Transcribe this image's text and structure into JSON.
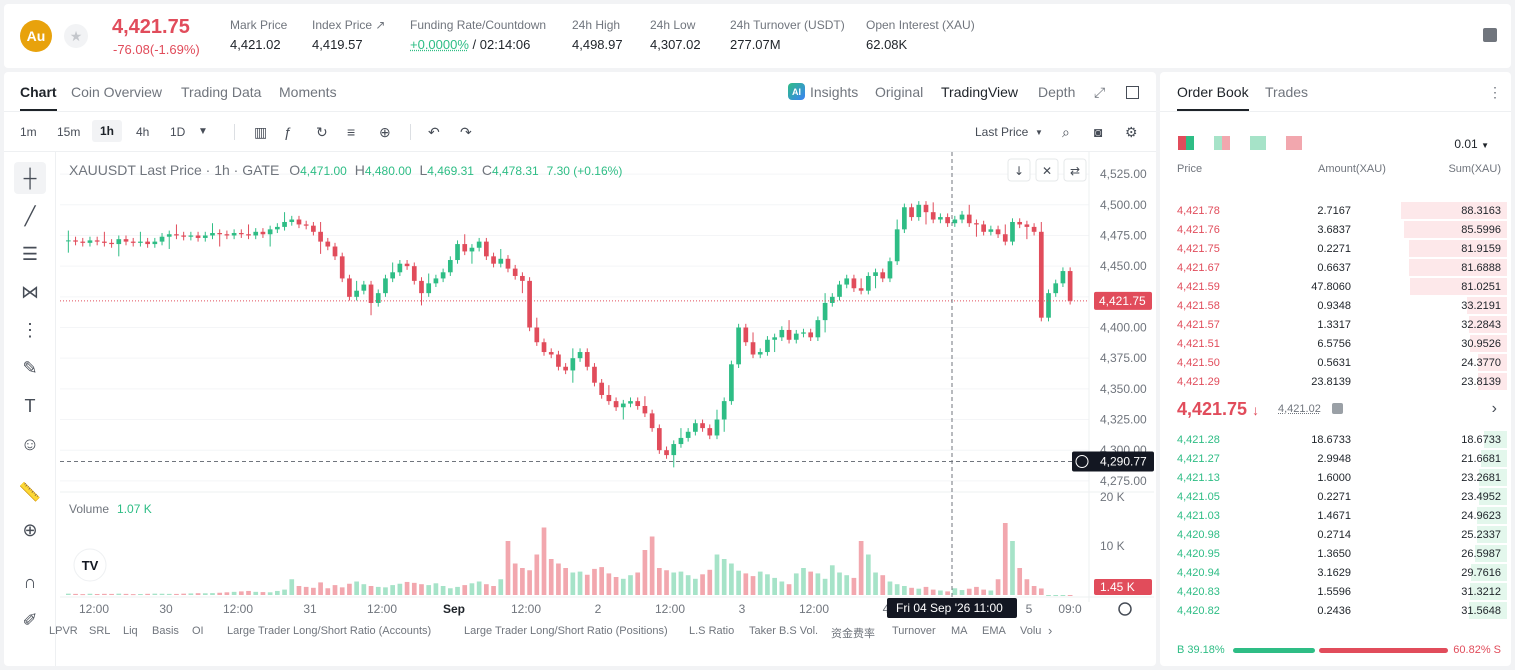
{
  "header": {
    "coin_logo": "Au",
    "last_price": "4,421.75",
    "change": "-76.08(-1.69%)",
    "stats": [
      {
        "label": "Mark Price",
        "value": "4,421.02"
      },
      {
        "label": "Index Price ↗",
        "value": "4,419.57"
      },
      {
        "label": "Funding Rate/Countdown",
        "value_green": "+0.0000%",
        "value": " / 02:14:06"
      },
      {
        "label": "24h High",
        "value": "4,498.97"
      },
      {
        "label": "24h Low",
        "value": "4,307.02"
      },
      {
        "label": "24h Turnover (USDT)",
        "value": "277.07M"
      },
      {
        "label": "Open Interest (XAU)",
        "value": "62.08K"
      }
    ]
  },
  "chart_tabs": {
    "left": [
      "Chart",
      "Coin Overview",
      "Trading Data",
      "Moments"
    ],
    "right": [
      "Insights",
      "Original",
      "TradingView",
      "Depth"
    ],
    "ai_badge": "AI"
  },
  "toolbar": {
    "timeframes": [
      "1m",
      "15m",
      "1h",
      "4h",
      "1D"
    ],
    "price_type": "Last Price"
  },
  "legend": {
    "symbol": "XAUUSDT Last Price · 1h · GATE",
    "o_label": "O",
    "o": "4,471.00",
    "h_label": "H",
    "h": "4,480.00",
    "l_label": "L",
    "l": "4,469.31",
    "c_label": "C",
    "c": "4,478.31",
    "chg": "7.30 (+0.16%)"
  },
  "volume_legend": {
    "label": "Volume",
    "value": "1.07 K"
  },
  "price_axis": [
    "4,525.00",
    "4,500.00",
    "4,475.00",
    "4,450.00",
    "4,425.00",
    "4,400.00",
    "4,375.00",
    "4,350.00",
    "4,325.00",
    "4,300.00",
    "4,275.00"
  ],
  "volume_axis": [
    "20 K",
    "10 K"
  ],
  "time_axis": [
    "12:00",
    "30",
    "12:00",
    "31",
    "12:00",
    "Sep",
    "12:00",
    "2",
    "12:00",
    "3",
    "12:00",
    "4",
    "5",
    "09:0"
  ],
  "price_tag": "4,421.75",
  "crosshair_tag": "4,290.77",
  "volume_tag": "1.45 K",
  "crosshair_time": "Fri 04 Sep '26   11:00",
  "indicators": [
    "LPVR",
    "SRL",
    "Liq",
    "Basis",
    "OI",
    "Large Trader Long/Short Ratio (Accounts)",
    "Large Trader Long/Short Ratio (Positions)",
    "L.S Ratio",
    "Taker B.S Vol.",
    "资金费率",
    "Turnover",
    "MA",
    "EMA",
    "Volu"
  ],
  "chart_data": {
    "type": "candlestick",
    "series_name": "XAUUSDT Last Price",
    "interval": "1h",
    "ylim": [
      4270,
      4530
    ],
    "closes": [
      4471,
      4470,
      4469,
      4471,
      4470,
      4469,
      4468,
      4472,
      4470,
      4469,
      4470,
      4468,
      4470,
      4474,
      4476,
      4475,
      4474,
      4475,
      4473,
      4475,
      4477,
      4476,
      4475,
      4477,
      4476,
      4475,
      4478,
      4476,
      4480,
      4482,
      4486,
      4488,
      4484,
      4483,
      4478,
      4470,
      4466,
      4458,
      4440,
      4425,
      4430,
      4435,
      4420,
      4428,
      4440,
      4445,
      4452,
      4450,
      4438,
      4428,
      4436,
      4440,
      4445,
      4455,
      4468,
      4462,
      4465,
      4470,
      4458,
      4452,
      4456,
      4448,
      4442,
      4438,
      4400,
      4388,
      4380,
      4378,
      4368,
      4365,
      4375,
      4380,
      4368,
      4355,
      4345,
      4340,
      4335,
      4338,
      4340,
      4336,
      4330,
      4318,
      4300,
      4296,
      4305,
      4310,
      4315,
      4322,
      4318,
      4312,
      4325,
      4340,
      4370,
      4400,
      4388,
      4378,
      4380,
      4390,
      4392,
      4398,
      4390,
      4395,
      4396,
      4392,
      4406,
      4420,
      4425,
      4435,
      4440,
      4432,
      4430,
      4442,
      4445,
      4440,
      4454,
      4480,
      4498,
      4490,
      4500,
      4494,
      4488,
      4490,
      4485,
      4488,
      4492,
      4485,
      4484,
      4478,
      4480,
      4476,
      4470,
      4486,
      4484,
      4482,
      4478,
      4408,
      4428,
      4436,
      4446,
      4421.75
    ],
    "volume_ylim": [
      0,
      20000
    ],
    "volumes": [
      300,
      250,
      200,
      280,
      220,
      260,
      240,
      300,
      250,
      200,
      220,
      260,
      300,
      280,
      250,
      240,
      300,
      350,
      400,
      380,
      420,
      500,
      600,
      700,
      800,
      900,
      700,
      650,
      600,
      900,
      1200,
      3500,
      2000,
      1800,
      1600,
      2800,
      1500,
      2200,
      1700,
      2500,
      3000,
      2400,
      2000,
      1800,
      1700,
      2200,
      2500,
      2900,
      2700,
      2400,
      2200,
      2600,
      2000,
      1500,
      1800,
      2200,
      2600,
      3000,
      2400,
      2000,
      3500,
      12000,
      7000,
      6000,
      5500,
      9000,
      15000,
      8000,
      7000,
      6000,
      5000,
      5200,
      4500,
      5800,
      6200,
      4800,
      4000,
      3600,
      4400,
      5000,
      10000,
      13000,
      6000,
      5500,
      5000,
      5200,
      4400,
      3600,
      4600,
      5600,
      9000,
      8000,
      7000,
      5400,
      4800,
      4200,
      5200,
      4600,
      3800,
      3000,
      2400,
      4800,
      6000,
      5200,
      4800,
      3600,
      6600,
      5000,
      4400,
      3800,
      12000,
      9000,
      5000,
      4400,
      3000,
      2400,
      2000,
      1600,
      1400,
      1800,
      1200,
      1000,
      800,
      1500,
      1100,
      1400,
      1800,
      1200,
      1000,
      3500,
      16000,
      12000,
      6000,
      3500,
      2000,
      1450
    ],
    "crosshair_price": 4290.77,
    "last_price": 4421.75
  },
  "order_book": {
    "tabs": [
      "Order Book",
      "Trades"
    ],
    "precision": "0.01",
    "columns": [
      "Price",
      "Amount(XAU)",
      "Sum(XAU)"
    ],
    "asks": [
      {
        "price": "4,421.78",
        "amount": "2.7167",
        "sum": "88.3163",
        "depth": 0.88
      },
      {
        "price": "4,421.76",
        "amount": "3.6837",
        "sum": "85.5996",
        "depth": 0.86
      },
      {
        "price": "4,421.75",
        "amount": "0.2271",
        "sum": "81.9159",
        "depth": 0.82
      },
      {
        "price": "4,421.67",
        "amount": "0.6637",
        "sum": "81.6888",
        "depth": 0.82
      },
      {
        "price": "4,421.59",
        "amount": "47.8060",
        "sum": "81.0251",
        "depth": 0.81
      },
      {
        "price": "4,421.58",
        "amount": "0.9348",
        "sum": "33.2191",
        "depth": 0.33
      },
      {
        "price": "4,421.57",
        "amount": "1.3317",
        "sum": "32.2843",
        "depth": 0.32
      },
      {
        "price": "4,421.51",
        "amount": "6.5756",
        "sum": "30.9526",
        "depth": 0.31
      },
      {
        "price": "4,421.50",
        "amount": "0.5631",
        "sum": "24.3770",
        "depth": 0.24
      },
      {
        "price": "4,421.29",
        "amount": "23.8139",
        "sum": "23.8139",
        "depth": 0.24
      }
    ],
    "mid_price": "4,421.75",
    "mid_arrow": "↓",
    "mid_mark": "4,421.02",
    "bids": [
      {
        "price": "4,421.28",
        "amount": "18.6733",
        "sum": "18.6733",
        "depth": 0.19
      },
      {
        "price": "4,421.27",
        "amount": "2.9948",
        "sum": "21.6681",
        "depth": 0.22
      },
      {
        "price": "4,421.13",
        "amount": "1.6000",
        "sum": "23.2681",
        "depth": 0.23
      },
      {
        "price": "4,421.05",
        "amount": "0.2271",
        "sum": "23.4952",
        "depth": 0.23
      },
      {
        "price": "4,421.03",
        "amount": "1.4671",
        "sum": "24.9623",
        "depth": 0.25
      },
      {
        "price": "4,420.98",
        "amount": "0.2714",
        "sum": "25.2337",
        "depth": 0.25
      },
      {
        "price": "4,420.95",
        "amount": "1.3650",
        "sum": "26.5987",
        "depth": 0.27
      },
      {
        "price": "4,420.94",
        "amount": "3.1629",
        "sum": "29.7616",
        "depth": 0.3
      },
      {
        "price": "4,420.83",
        "amount": "1.5596",
        "sum": "31.3212",
        "depth": 0.31
      },
      {
        "price": "4,420.82",
        "amount": "0.2436",
        "sum": "31.5648",
        "depth": 0.32
      }
    ],
    "buy_ratio": "B 39.18%",
    "sell_ratio": "60.82% S",
    "buy_fraction": 0.3918
  },
  "colors": {
    "up": "#2ebd85",
    "down": "#e14c5b",
    "up_vol": "#a6e3c8",
    "down_vol": "#f2a7ae",
    "accent": "#e8a20c"
  }
}
